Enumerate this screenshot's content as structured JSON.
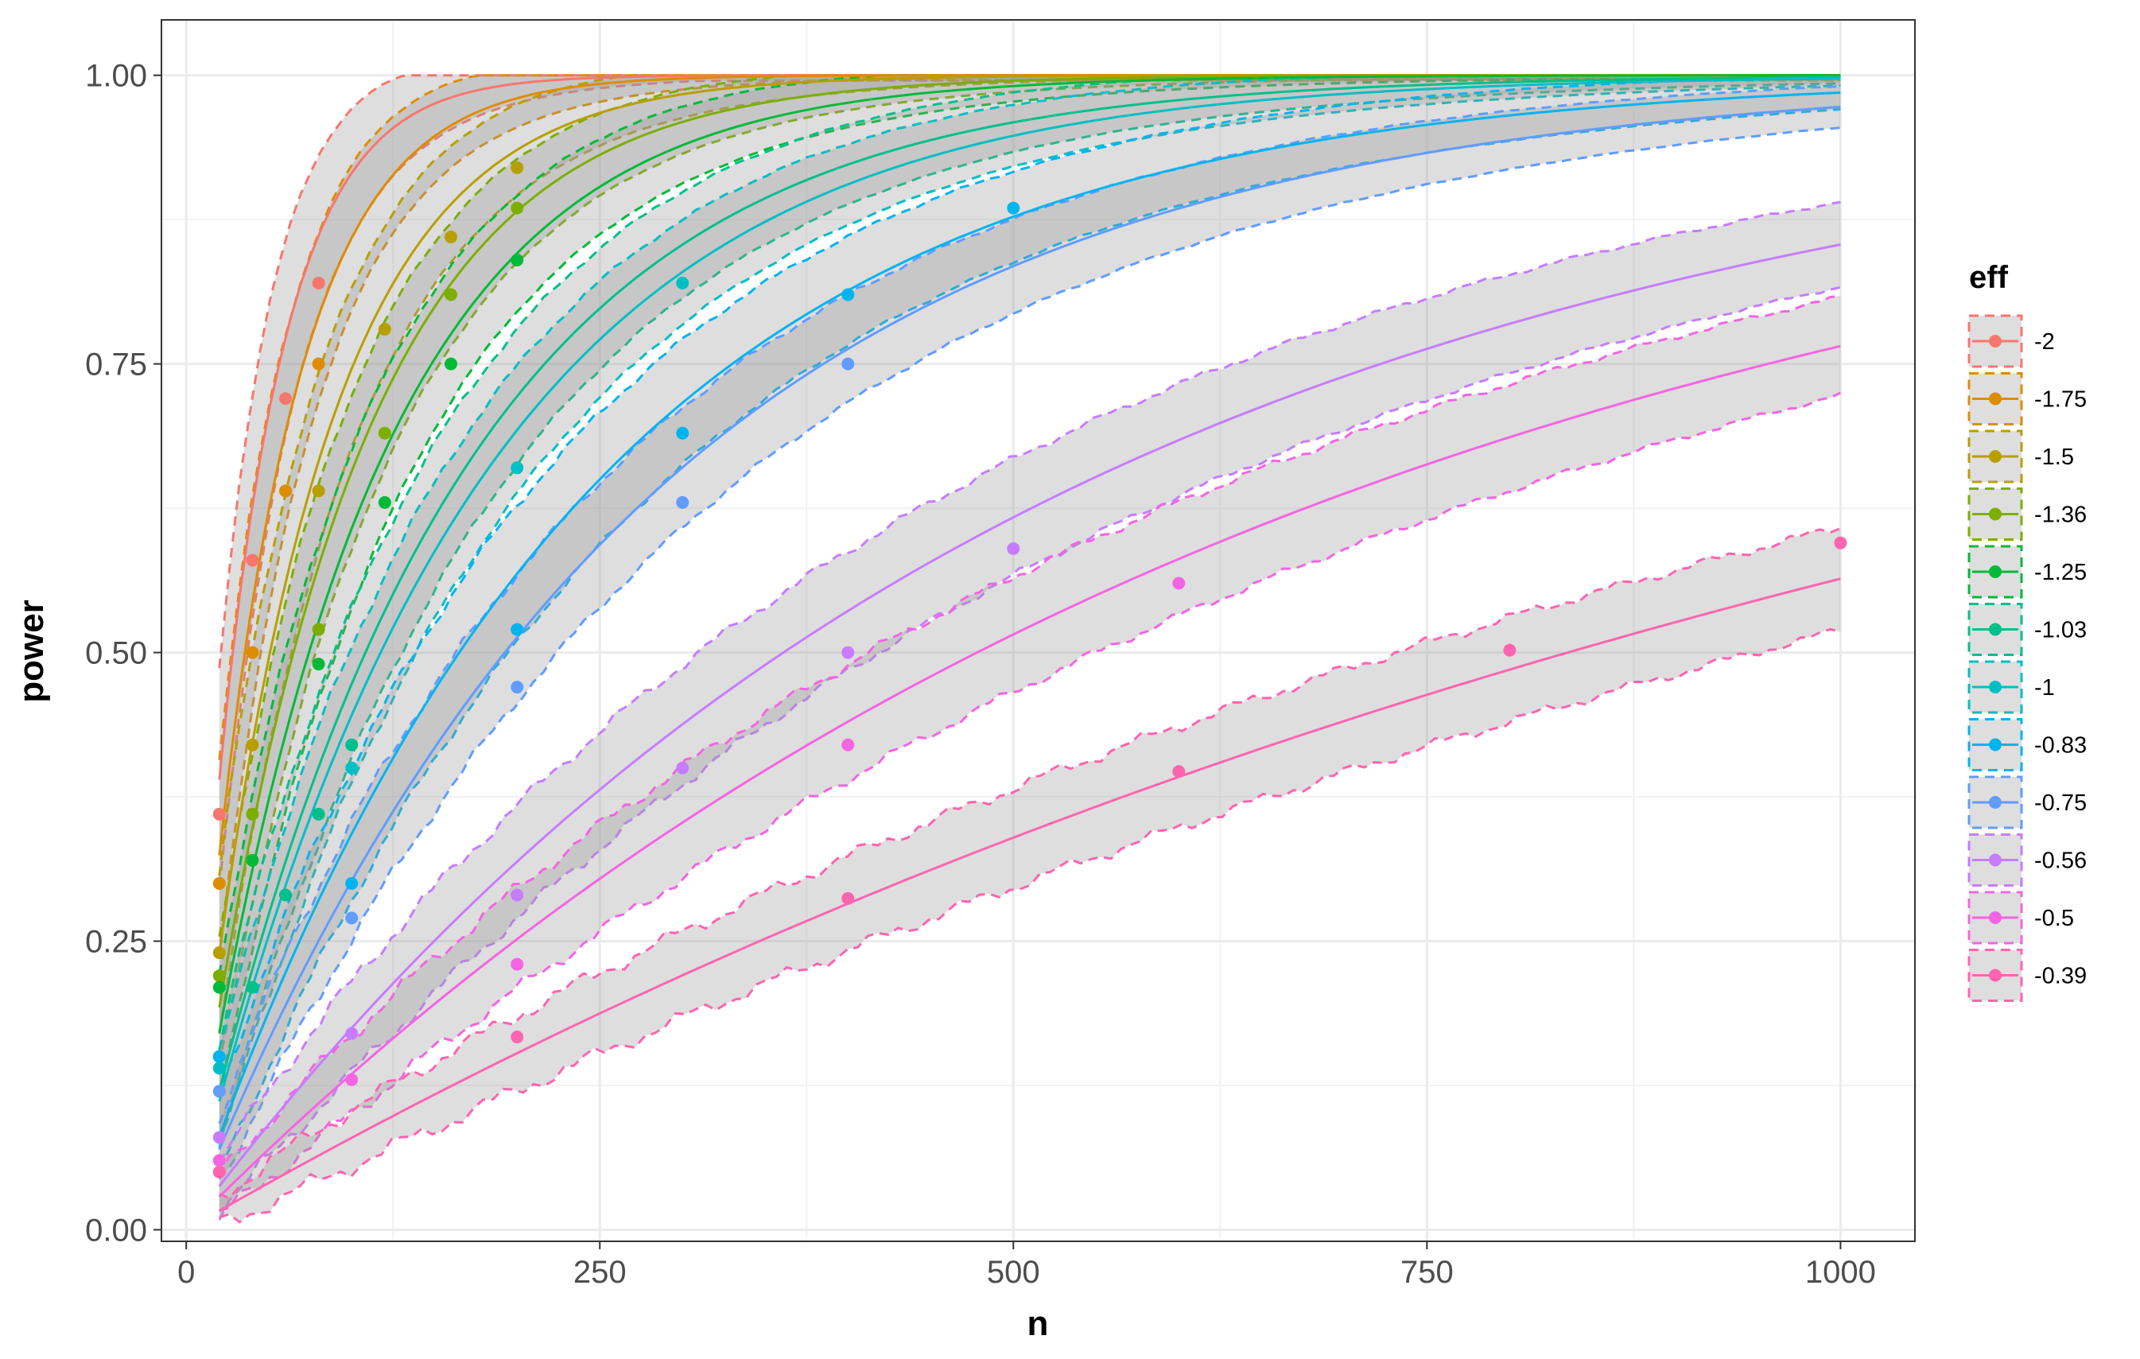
{
  "chart_data": {
    "type": "line",
    "title": "",
    "xlabel": "n",
    "ylabel": "power",
    "xlim": [
      -15,
      1045
    ],
    "ylim": [
      -0.01,
      1.048
    ],
    "x_ticks": [
      0,
      250,
      500,
      750,
      1000
    ],
    "x_tick_labels": [
      "0",
      "250",
      "500",
      "750",
      "1000"
    ],
    "y_ticks": [
      0,
      0.25,
      0.5,
      0.75,
      1.0
    ],
    "y_tick_labels": [
      "0.00",
      "0.25",
      "0.50",
      "0.75",
      "1.00"
    ],
    "grid": true,
    "band": "dashed lines in series colour bound a grey ribbon around each solid curve",
    "legend": {
      "title": "eff",
      "position": "right"
    },
    "x_range": [
      20,
      1000
    ],
    "series": [
      {
        "name": "-2",
        "color": "#F8766D",
        "rate": 0.0247,
        "lo": 0.1,
        "hi": 0.1,
        "points": [
          [
            20,
            0.36
          ],
          [
            40,
            0.58
          ],
          [
            60,
            0.72
          ],
          [
            80,
            0.82
          ]
        ]
      },
      {
        "name": "-1.75",
        "color": "#DE8C00",
        "rate": 0.0196,
        "lo": 0.09,
        "hi": 0.09,
        "points": [
          [
            20,
            0.3
          ],
          [
            40,
            0.5
          ],
          [
            60,
            0.64
          ],
          [
            80,
            0.75
          ]
        ]
      },
      {
        "name": "-1.5",
        "color": "#B79F00",
        "rate": 0.0137,
        "lo": 0.08,
        "hi": 0.08,
        "points": [
          [
            20,
            0.24
          ],
          [
            40,
            0.42
          ],
          [
            80,
            0.64
          ],
          [
            120,
            0.78
          ],
          [
            160,
            0.86
          ],
          [
            200,
            0.92
          ]
        ]
      },
      {
        "name": "-1.36",
        "color": "#7CAE00",
        "rate": 0.0107,
        "lo": 0.07,
        "hi": 0.07,
        "points": [
          [
            20,
            0.22
          ],
          [
            40,
            0.36
          ],
          [
            80,
            0.52
          ],
          [
            120,
            0.69
          ],
          [
            160,
            0.81
          ],
          [
            200,
            0.885
          ]
        ]
      },
      {
        "name": "-1.25",
        "color": "#00BA38",
        "rate": 0.00935,
        "lo": 0.07,
        "hi": 0.07,
        "points": [
          [
            20,
            0.21
          ],
          [
            40,
            0.32
          ],
          [
            80,
            0.49
          ],
          [
            120,
            0.63
          ],
          [
            160,
            0.75
          ],
          [
            200,
            0.84
          ]
        ]
      },
      {
        "name": "-1.03",
        "color": "#00C08B",
        "rate": 0.0064,
        "lo": 0.065,
        "hi": 0.065,
        "points": [
          [
            20,
            0.15
          ],
          [
            40,
            0.21
          ],
          [
            60,
            0.29
          ],
          [
            80,
            0.36
          ],
          [
            100,
            0.42
          ]
        ]
      },
      {
        "name": "-1",
        "color": "#00BFC4",
        "rate": 0.0059,
        "lo": 0.06,
        "hi": 0.06,
        "points": [
          [
            20,
            0.14
          ],
          [
            100,
            0.4
          ],
          [
            200,
            0.66
          ],
          [
            300,
            0.82
          ]
        ]
      },
      {
        "name": "-0.83",
        "color": "#00B4F0",
        "rate": 0.0042,
        "lo": 0.06,
        "hi": 0.06,
        "points": [
          [
            20,
            0.15
          ],
          [
            100,
            0.3
          ],
          [
            200,
            0.52
          ],
          [
            300,
            0.69
          ],
          [
            400,
            0.81
          ],
          [
            500,
            0.885
          ]
        ]
      },
      {
        "name": "-0.75",
        "color": "#619CFF",
        "rate": 0.0036,
        "lo": 0.055,
        "hi": 0.055,
        "points": [
          [
            20,
            0.12
          ],
          [
            100,
            0.27
          ],
          [
            200,
            0.47
          ],
          [
            300,
            0.63
          ],
          [
            400,
            0.75
          ]
        ]
      },
      {
        "name": "-0.56",
        "color": "#C77CFF",
        "rate": 0.00192,
        "lo": 0.052,
        "hi": 0.052,
        "points": [
          [
            20,
            0.08
          ],
          [
            100,
            0.17
          ],
          [
            200,
            0.29
          ],
          [
            300,
            0.4
          ],
          [
            400,
            0.5
          ],
          [
            500,
            0.59
          ]
        ]
      },
      {
        "name": "-0.5",
        "color": "#F564E3",
        "rate": 0.00145,
        "lo": 0.05,
        "hi": 0.05,
        "points": [
          [
            20,
            0.06
          ],
          [
            100,
            0.13
          ],
          [
            200,
            0.23
          ],
          [
            400,
            0.42
          ],
          [
            600,
            0.56
          ]
        ]
      },
      {
        "name": "-0.39",
        "color": "#FF64B0",
        "rate": 0.00083,
        "lo": 0.045,
        "hi": 0.045,
        "points": [
          [
            20,
            0.05
          ],
          [
            200,
            0.167
          ],
          [
            400,
            0.287
          ],
          [
            600,
            0.397
          ],
          [
            800,
            0.502
          ],
          [
            1000,
            0.595
          ]
        ]
      }
    ]
  }
}
